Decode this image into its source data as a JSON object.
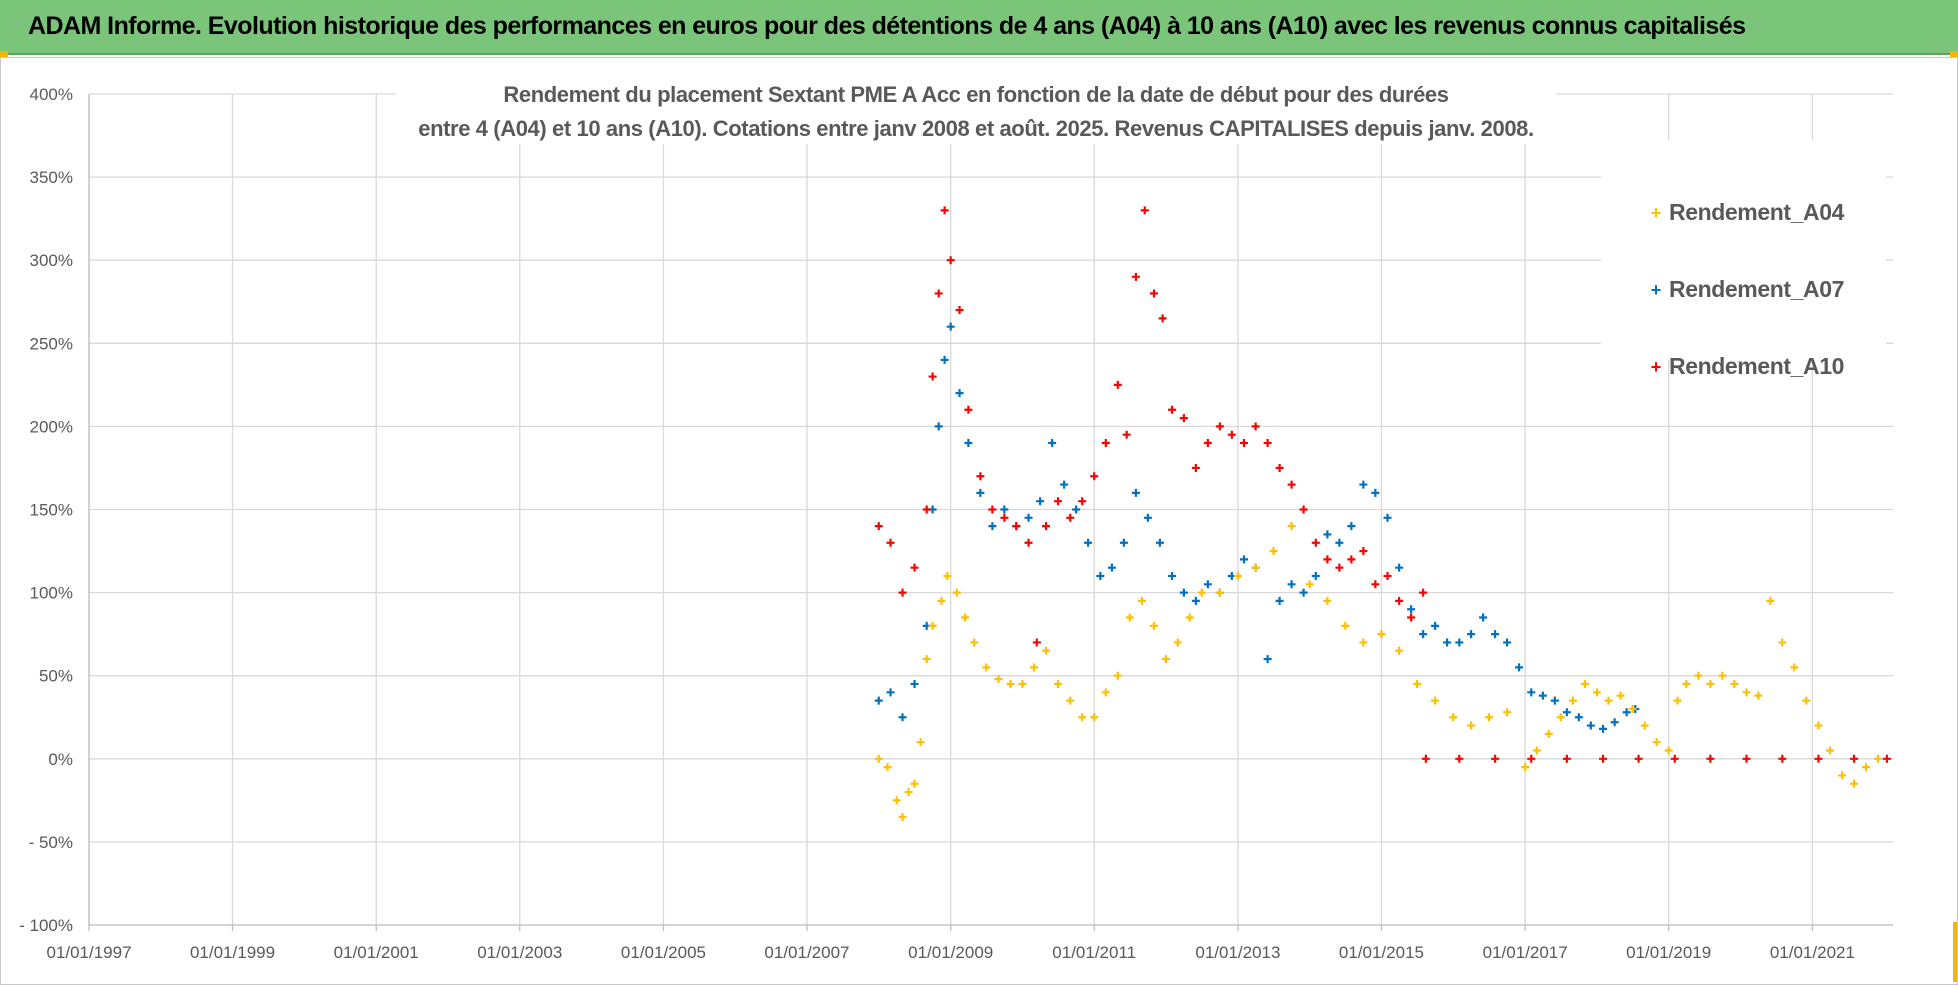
{
  "banner": {
    "title": "ADAM Informe. Evolution historique des performances en euros pour des détentions de 4 ans (A04) à 10 ans (A10) avec les revenus connus capitalisés"
  },
  "colors": {
    "banner_bg": "#7ac57a",
    "A04": "#ffc000",
    "A07": "#0070c0",
    "A10": "#ff0000",
    "grid": "#d9d9d9",
    "text": "#595959"
  },
  "chart_data": {
    "type": "scatter",
    "title_line1": "Rendement du placement Sextant PME A Acc en fonction de la date de début pour des durées",
    "title_line2": "entre 4 (A04) et 10 ans (A10). Cotations entre janv 2008 et août. 2025. Revenus CAPITALISES depuis janv. 2008.",
    "xlabel": "",
    "ylabel": "",
    "x_range": [
      "1997-01-01",
      "2022-02-15"
    ],
    "x_ticks": [
      "01/01/1997",
      "01/01/1999",
      "01/01/2001",
      "01/01/2003",
      "01/01/2005",
      "01/01/2007",
      "01/01/2009",
      "01/01/2011",
      "01/01/2013",
      "01/01/2015",
      "01/01/2017",
      "01/01/2019",
      "01/01/2021"
    ],
    "y_range": [
      -100,
      400
    ],
    "y_ticks": [
      -100,
      -50,
      0,
      50,
      100,
      150,
      200,
      250,
      300,
      350,
      400
    ],
    "y_tick_labels": [
      "- 100%",
      "- 50%",
      "0%",
      "50%",
      "100%",
      "150%",
      "200%",
      "250%",
      "300%",
      "350%",
      "400%"
    ],
    "grid": true,
    "legend_position": "top-right",
    "marker": "+",
    "series": [
      {
        "name": "Rendement_A04",
        "color": "#ffc000",
        "points": [
          [
            "2008-01-01",
            0
          ],
          [
            "2008-02-15",
            -5
          ],
          [
            "2008-04-01",
            -25
          ],
          [
            "2008-05-01",
            -35
          ],
          [
            "2008-06-01",
            -20
          ],
          [
            "2008-07-01",
            -15
          ],
          [
            "2008-08-01",
            10
          ],
          [
            "2008-09-01",
            60
          ],
          [
            "2008-10-01",
            80
          ],
          [
            "2008-11-15",
            95
          ],
          [
            "2008-12-15",
            110
          ],
          [
            "2009-02-01",
            100
          ],
          [
            "2009-03-15",
            85
          ],
          [
            "2009-05-01",
            70
          ],
          [
            "2009-07-01",
            55
          ],
          [
            "2009-09-01",
            48
          ],
          [
            "2009-11-01",
            45
          ],
          [
            "2010-01-01",
            45
          ],
          [
            "2010-03-01",
            55
          ],
          [
            "2010-05-01",
            65
          ],
          [
            "2010-07-01",
            45
          ],
          [
            "2010-09-01",
            35
          ],
          [
            "2010-11-01",
            25
          ],
          [
            "2011-01-01",
            25
          ],
          [
            "2011-03-01",
            40
          ],
          [
            "2011-05-01",
            50
          ],
          [
            "2011-07-01",
            85
          ],
          [
            "2011-09-01",
            95
          ],
          [
            "2011-11-01",
            80
          ],
          [
            "2012-01-01",
            60
          ],
          [
            "2012-03-01",
            70
          ],
          [
            "2012-05-01",
            85
          ],
          [
            "2012-07-01",
            100
          ],
          [
            "2012-10-01",
            100
          ],
          [
            "2013-01-01",
            110
          ],
          [
            "2013-04-01",
            115
          ],
          [
            "2013-07-01",
            125
          ],
          [
            "2013-10-01",
            140
          ],
          [
            "2014-01-01",
            105
          ],
          [
            "2014-04-01",
            95
          ],
          [
            "2014-07-01",
            80
          ],
          [
            "2014-10-01",
            70
          ],
          [
            "2015-01-01",
            75
          ],
          [
            "2015-04-01",
            65
          ],
          [
            "2015-07-01",
            45
          ],
          [
            "2015-10-01",
            35
          ],
          [
            "2016-01-01",
            25
          ],
          [
            "2016-04-01",
            20
          ],
          [
            "2016-07-01",
            25
          ],
          [
            "2016-10-01",
            28
          ],
          [
            "2017-01-01",
            -5
          ],
          [
            "2017-03-01",
            5
          ],
          [
            "2017-05-01",
            15
          ],
          [
            "2017-07-01",
            25
          ],
          [
            "2017-09-01",
            35
          ],
          [
            "2017-11-01",
            45
          ],
          [
            "2018-01-01",
            40
          ],
          [
            "2018-03-01",
            35
          ],
          [
            "2018-05-01",
            38
          ],
          [
            "2018-07-01",
            30
          ],
          [
            "2018-09-01",
            20
          ],
          [
            "2018-11-01",
            10
          ],
          [
            "2019-01-01",
            5
          ],
          [
            "2019-02-15",
            35
          ],
          [
            "2019-04-01",
            45
          ],
          [
            "2019-06-01",
            50
          ],
          [
            "2019-08-01",
            45
          ],
          [
            "2019-10-01",
            50
          ],
          [
            "2019-12-01",
            45
          ],
          [
            "2020-02-01",
            40
          ],
          [
            "2020-04-01",
            38
          ],
          [
            "2020-06-01",
            95
          ],
          [
            "2020-08-01",
            70
          ],
          [
            "2020-10-01",
            55
          ],
          [
            "2020-12-01",
            35
          ],
          [
            "2021-02-01",
            20
          ],
          [
            "2021-04-01",
            5
          ],
          [
            "2021-06-01",
            -10
          ],
          [
            "2021-08-01",
            -15
          ],
          [
            "2021-10-01",
            -5
          ],
          [
            "2021-12-01",
            0
          ]
        ]
      },
      {
        "name": "Rendement_A07",
        "color": "#0070c0",
        "points": [
          [
            "2008-01-01",
            35
          ],
          [
            "2008-03-01",
            40
          ],
          [
            "2008-05-01",
            25
          ],
          [
            "2008-07-01",
            45
          ],
          [
            "2008-09-01",
            80
          ],
          [
            "2008-10-01",
            150
          ],
          [
            "2008-11-01",
            200
          ],
          [
            "2008-12-01",
            240
          ],
          [
            "2009-01-01",
            260
          ],
          [
            "2009-02-15",
            220
          ],
          [
            "2009-04-01",
            190
          ],
          [
            "2009-06-01",
            160
          ],
          [
            "2009-08-01",
            140
          ],
          [
            "2009-10-01",
            150
          ],
          [
            "2009-12-01",
            140
          ],
          [
            "2010-02-01",
            145
          ],
          [
            "2010-04-01",
            155
          ],
          [
            "2010-06-01",
            190
          ],
          [
            "2010-08-01",
            165
          ],
          [
            "2010-10-01",
            150
          ],
          [
            "2010-12-01",
            130
          ],
          [
            "2011-02-01",
            110
          ],
          [
            "2011-04-01",
            115
          ],
          [
            "2011-06-01",
            130
          ],
          [
            "2011-08-01",
            160
          ],
          [
            "2011-10-01",
            145
          ],
          [
            "2011-12-01",
            130
          ],
          [
            "2012-02-01",
            110
          ],
          [
            "2012-04-01",
            100
          ],
          [
            "2012-06-01",
            95
          ],
          [
            "2012-08-01",
            105
          ],
          [
            "2012-10-01",
            100
          ],
          [
            "2012-12-01",
            110
          ],
          [
            "2013-02-01",
            120
          ],
          [
            "2013-04-01",
            115
          ],
          [
            "2013-06-01",
            60
          ],
          [
            "2013-08-01",
            95
          ],
          [
            "2013-10-01",
            105
          ],
          [
            "2013-12-01",
            100
          ],
          [
            "2014-02-01",
            110
          ],
          [
            "2014-04-01",
            135
          ],
          [
            "2014-06-01",
            130
          ],
          [
            "2014-08-01",
            140
          ],
          [
            "2014-10-01",
            165
          ],
          [
            "2014-12-01",
            160
          ],
          [
            "2015-02-01",
            145
          ],
          [
            "2015-04-01",
            115
          ],
          [
            "2015-06-01",
            90
          ],
          [
            "2015-08-01",
            75
          ],
          [
            "2015-10-01",
            80
          ],
          [
            "2015-12-01",
            70
          ],
          [
            "2016-02-01",
            70
          ],
          [
            "2016-04-01",
            75
          ],
          [
            "2016-06-01",
            85
          ],
          [
            "2016-08-01",
            75
          ],
          [
            "2016-10-01",
            70
          ],
          [
            "2016-12-01",
            55
          ],
          [
            "2017-02-01",
            40
          ],
          [
            "2017-04-01",
            38
          ],
          [
            "2017-06-01",
            35
          ],
          [
            "2017-08-01",
            28
          ],
          [
            "2017-10-01",
            25
          ],
          [
            "2017-12-01",
            20
          ],
          [
            "2018-02-01",
            18
          ],
          [
            "2018-04-01",
            22
          ],
          [
            "2018-06-01",
            28
          ],
          [
            "2018-07-15",
            30
          ]
        ]
      },
      {
        "name": "Rendement_A10",
        "color": "#ff0000",
        "points": [
          [
            "2008-01-01",
            140
          ],
          [
            "2008-03-01",
            130
          ],
          [
            "2008-05-01",
            100
          ],
          [
            "2008-07-01",
            115
          ],
          [
            "2008-09-01",
            150
          ],
          [
            "2008-10-01",
            230
          ],
          [
            "2008-11-01",
            280
          ],
          [
            "2008-12-01",
            330
          ],
          [
            "2009-01-01",
            300
          ],
          [
            "2009-02-15",
            270
          ],
          [
            "2009-04-01",
            210
          ],
          [
            "2009-06-01",
            170
          ],
          [
            "2009-08-01",
            150
          ],
          [
            "2009-10-01",
            145
          ],
          [
            "2009-12-01",
            140
          ],
          [
            "2010-02-01",
            130
          ],
          [
            "2010-03-15",
            70
          ],
          [
            "2010-05-01",
            140
          ],
          [
            "2010-07-01",
            155
          ],
          [
            "2010-09-01",
            145
          ],
          [
            "2010-11-01",
            155
          ],
          [
            "2011-01-01",
            170
          ],
          [
            "2011-03-01",
            190
          ],
          [
            "2011-05-01",
            225
          ],
          [
            "2011-06-15",
            195
          ],
          [
            "2011-08-01",
            290
          ],
          [
            "2011-09-15",
            330
          ],
          [
            "2011-11-01",
            280
          ],
          [
            "2011-12-15",
            265
          ],
          [
            "2012-02-01",
            210
          ],
          [
            "2012-04-01",
            205
          ],
          [
            "2012-06-01",
            175
          ],
          [
            "2012-08-01",
            190
          ],
          [
            "2012-10-01",
            200
          ],
          [
            "2012-12-01",
            195
          ],
          [
            "2013-02-01",
            190
          ],
          [
            "2013-04-01",
            200
          ],
          [
            "2013-06-01",
            190
          ],
          [
            "2013-08-01",
            175
          ],
          [
            "2013-10-01",
            165
          ],
          [
            "2013-12-01",
            150
          ],
          [
            "2014-02-01",
            130
          ],
          [
            "2014-04-01",
            120
          ],
          [
            "2014-06-01",
            115
          ],
          [
            "2014-08-01",
            120
          ],
          [
            "2014-10-01",
            125
          ],
          [
            "2014-12-01",
            105
          ],
          [
            "2015-02-01",
            110
          ],
          [
            "2015-04-01",
            95
          ],
          [
            "2015-06-01",
            85
          ],
          [
            "2015-08-01",
            100
          ]
        ]
      },
      {
        "name": "Rendement_A10",
        "color": "#ff0000",
        "points": [
          [
            "2015-08-15",
            0
          ],
          [
            "2016-02-01",
            0
          ],
          [
            "2016-08-01",
            0
          ],
          [
            "2017-02-01",
            0
          ],
          [
            "2017-08-01",
            0
          ],
          [
            "2018-02-01",
            0
          ],
          [
            "2018-08-01",
            0
          ],
          [
            "2019-02-01",
            0
          ],
          [
            "2019-08-01",
            0
          ],
          [
            "2020-02-01",
            0
          ],
          [
            "2020-08-01",
            0
          ],
          [
            "2021-02-01",
            0
          ],
          [
            "2021-08-01",
            0
          ],
          [
            "2022-01-15",
            0
          ]
        ]
      }
    ],
    "legend": [
      "Rendement_A04",
      "Rendement_A07",
      "Rendement_A10"
    ]
  }
}
